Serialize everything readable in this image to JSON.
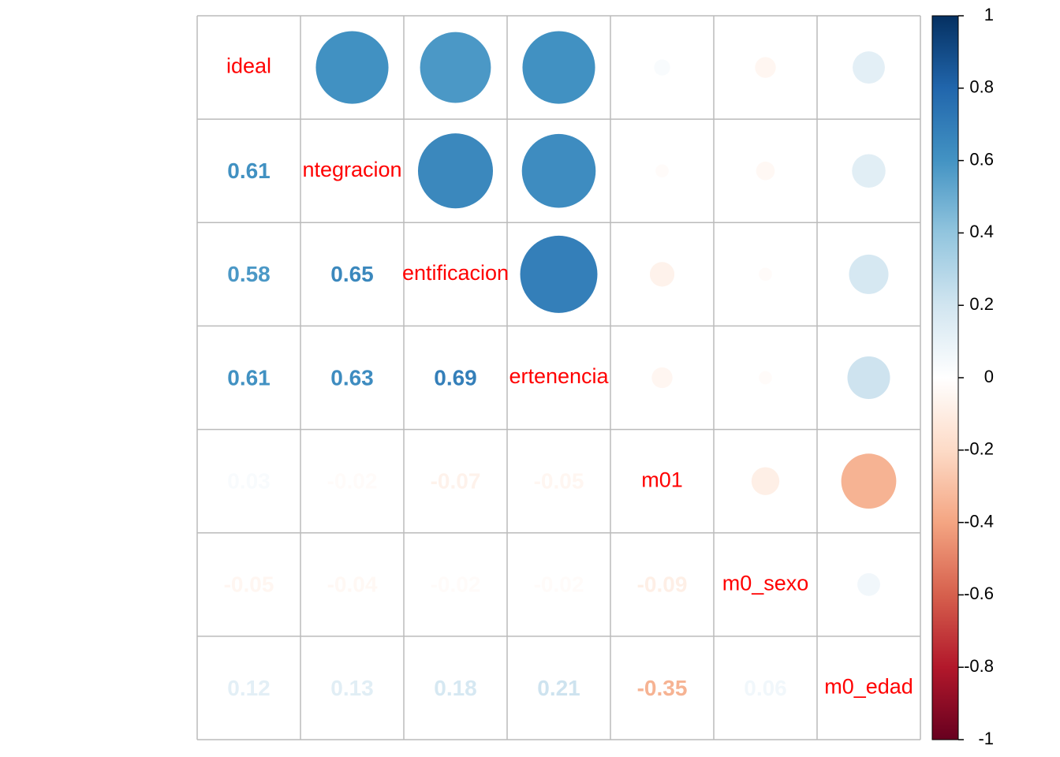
{
  "chart_data": {
    "type": "corrplot",
    "variables": [
      "ideal",
      "ntegracion",
      "entificacion",
      "ertenencia",
      "m01",
      "m0_sexo",
      "m0_edad"
    ],
    "matrix": [
      [],
      [
        0.61
      ],
      [
        0.58,
        0.65
      ],
      [
        0.61,
        0.63,
        0.69
      ],
      [
        0.03,
        -0.02,
        -0.07,
        -0.05
      ],
      [
        -0.05,
        -0.04,
        -0.02,
        -0.02,
        -0.09
      ],
      [
        0.12,
        0.13,
        0.18,
        0.21,
        -0.35,
        0.06
      ]
    ],
    "palette": [
      "#67001F",
      "#B2182B",
      "#D6604D",
      "#F4A582",
      "#FDDBC7",
      "#FFFFFF",
      "#D1E5F0",
      "#92C5DE",
      "#4393C3",
      "#2166AC",
      "#053061"
    ],
    "label_color": "#FF0000",
    "ylim": [
      -1,
      1
    ],
    "yticks": [
      -1,
      -0.8,
      -0.6,
      -0.4,
      -0.2,
      0,
      0.2,
      0.4,
      0.6,
      0.8,
      1
    ]
  }
}
